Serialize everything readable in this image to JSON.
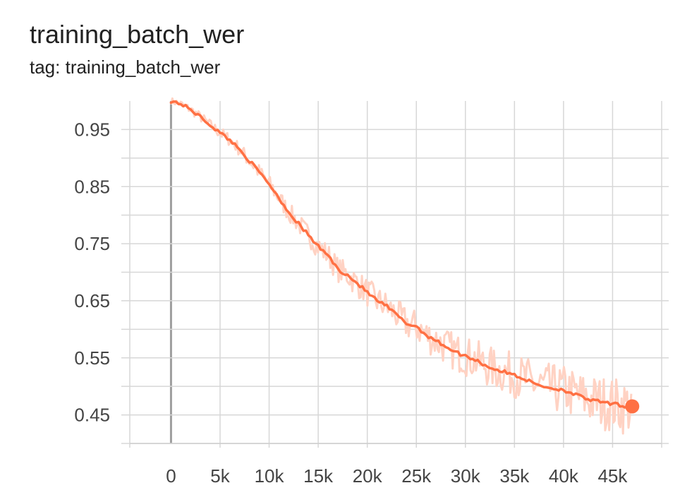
{
  "title": "training_batch_wer",
  "subtitle": "tag: training_batch_wer",
  "chart_data": {
    "type": "line",
    "title": "training_batch_wer",
    "subtitle": "tag: training_batch_wer",
    "xlim": [
      -4200,
      50000
    ],
    "ylim": [
      0.4,
      1.0
    ],
    "x_ticks": [
      0,
      5000,
      10000,
      15000,
      20000,
      25000,
      30000,
      35000,
      40000,
      45000
    ],
    "x_tick_labels": [
      "0",
      "5k",
      "10k",
      "15k",
      "20k",
      "25k",
      "30k",
      "35k",
      "40k",
      "45k"
    ],
    "y_ticks": [
      0.45,
      0.55,
      0.65,
      0.75,
      0.85,
      0.95
    ],
    "y_tick_labels": [
      "0.45",
      "0.55",
      "0.65",
      "0.75",
      "0.85",
      "0.95"
    ],
    "grid": true,
    "colors": {
      "smoothed": "#ff7043",
      "raw": "#ffd2c3"
    },
    "series": [
      {
        "x": [
          0,
          1000,
          2000,
          3000,
          4000,
          5000,
          6000,
          7000,
          8000,
          9000,
          10000,
          11000,
          12000,
          13000,
          14000,
          15000,
          16000,
          17000,
          18000,
          19000,
          20000,
          21000,
          22000,
          23000,
          24000,
          25000,
          26000,
          27000,
          28000,
          29000,
          30000,
          31000,
          32000,
          33000,
          34000,
          35000,
          36000,
          37000,
          38000,
          39000,
          40000,
          41000,
          42000,
          43000,
          44000,
          45000,
          46000,
          47000
        ],
        "y": [
          1.0,
          0.995,
          0.985,
          0.972,
          0.958,
          0.944,
          0.932,
          0.915,
          0.895,
          0.875,
          0.855,
          0.83,
          0.805,
          0.785,
          0.765,
          0.745,
          0.73,
          0.705,
          0.695,
          0.68,
          0.665,
          0.65,
          0.64,
          0.625,
          0.61,
          0.605,
          0.59,
          0.58,
          0.57,
          0.56,
          0.553,
          0.547,
          0.537,
          0.53,
          0.525,
          0.52,
          0.513,
          0.505,
          0.5,
          0.496,
          0.494,
          0.487,
          0.48,
          0.475,
          0.472,
          0.469,
          0.466,
          0.465
        ]
      }
    ]
  }
}
